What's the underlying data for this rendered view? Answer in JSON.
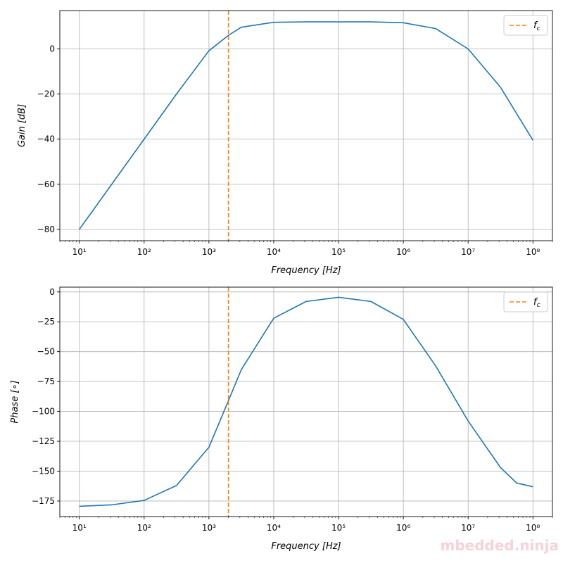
{
  "chart_data": [
    {
      "type": "line",
      "xscale": "log",
      "xlim": [
        5,
        200000000
      ],
      "ylim": [
        -85,
        17
      ],
      "xlabel": "Frequency [Hz]",
      "ylabel": "Gain [dB]",
      "grid": true,
      "legend": {
        "placement": "top-right",
        "entries": [
          {
            "label": "fc",
            "style": "dashed",
            "color": "#ff7f0e"
          }
        ]
      },
      "vline": {
        "x": 2000,
        "label": "fc",
        "color": "#ff7f0e"
      },
      "xticks": [
        {
          "value": 10,
          "label": "10¹"
        },
        {
          "value": 100,
          "label": "10²"
        },
        {
          "value": 1000,
          "label": "10³"
        },
        {
          "value": 10000,
          "label": "10⁴"
        },
        {
          "value": 100000,
          "label": "10⁵"
        },
        {
          "value": 1000000,
          "label": "10⁶"
        },
        {
          "value": 10000000,
          "label": "10⁷"
        },
        {
          "value": 100000000,
          "label": "10⁸"
        }
      ],
      "yticks": [
        {
          "value": 0,
          "label": "0"
        },
        {
          "value": -20,
          "label": "−20"
        },
        {
          "value": -40,
          "label": "−40"
        },
        {
          "value": -60,
          "label": "−60"
        },
        {
          "value": -80,
          "label": "−80"
        }
      ],
      "series": [
        {
          "color": "#1f77b4",
          "x": [
            10,
            31.6,
            100,
            316,
            1000,
            2000,
            3160,
            10000,
            31600,
            100000,
            316000,
            1000000,
            3160000,
            10000000,
            31600000,
            100000000
          ],
          "y": [
            -80,
            -60,
            -40,
            -20,
            -0.8,
            6,
            9.6,
            11.8,
            12,
            12,
            12,
            11.6,
            9,
            0,
            -17,
            -40.5
          ]
        }
      ]
    },
    {
      "type": "line",
      "xscale": "log",
      "xlim": [
        5,
        200000000
      ],
      "ylim": [
        -188,
        4
      ],
      "xlabel": "Frequency [Hz]",
      "ylabel": "Phase [∘]",
      "grid": true,
      "legend": {
        "placement": "top-right",
        "entries": [
          {
            "label": "fc",
            "style": "dashed",
            "color": "#ff7f0e"
          }
        ]
      },
      "vline": {
        "x": 2000,
        "label": "fc",
        "color": "#ff7f0e"
      },
      "xticks": [
        {
          "value": 10,
          "label": "10¹"
        },
        {
          "value": 100,
          "label": "10²"
        },
        {
          "value": 1000,
          "label": "10³"
        },
        {
          "value": 10000,
          "label": "10⁴"
        },
        {
          "value": 100000,
          "label": "10⁵"
        },
        {
          "value": 1000000,
          "label": "10⁶"
        },
        {
          "value": 10000000,
          "label": "10⁷"
        },
        {
          "value": 100000000,
          "label": "10⁸"
        }
      ],
      "yticks": [
        {
          "value": 0,
          "label": "0"
        },
        {
          "value": -25,
          "label": "−25"
        },
        {
          "value": -50,
          "label": "−50"
        },
        {
          "value": -75,
          "label": "−75"
        },
        {
          "value": -100,
          "label": "−100"
        },
        {
          "value": -125,
          "label": "−125"
        },
        {
          "value": -150,
          "label": "−150"
        },
        {
          "value": -175,
          "label": "−175"
        }
      ],
      "series": [
        {
          "color": "#1f77b4",
          "x": [
            10,
            31.6,
            100,
            316,
            1000,
            2000,
            3160,
            10000,
            31600,
            100000,
            316000,
            1000000,
            3160000,
            10000000,
            31600000,
            56200000,
            100000000
          ],
          "y": [
            -179.4,
            -178.2,
            -174.5,
            -162,
            -130,
            -91,
            -65,
            -22,
            -8,
            -4.5,
            -8,
            -23,
            -62,
            -108,
            -147,
            -160,
            -163
          ]
        }
      ]
    }
  ],
  "watermark": "mbedded.ninja"
}
